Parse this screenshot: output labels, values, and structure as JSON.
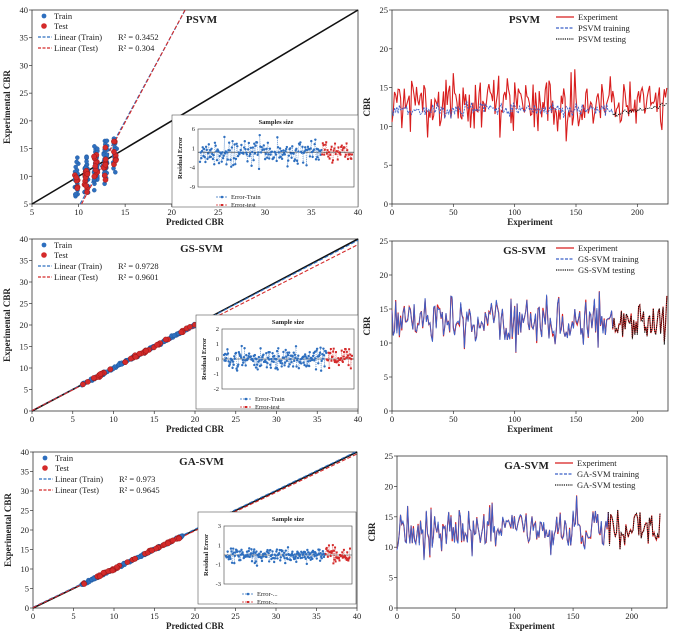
{
  "chart_data": [
    {
      "type": "scatter",
      "panel": "scatter",
      "title": "PSVM",
      "xlabel": "Predicted CBR",
      "ylabel": "Experimental CBR",
      "xlim": [
        5,
        40
      ],
      "ylim": [
        5,
        40
      ],
      "xticks": [
        "5",
        "10",
        "15",
        "20",
        "25",
        "30",
        "35",
        "40"
      ],
      "yticks": [
        "5",
        "10",
        "15",
        "20",
        "25",
        "30",
        "35",
        "40"
      ],
      "legend": {
        "train": "Train",
        "test": "Test",
        "fit_train": "Linear (Train)",
        "fit_test": "Linear (Test)"
      },
      "r2_train": "R² = 0.3452",
      "r2_test": "R² = 0.304",
      "fit_train_line": {
        "slope": 3.1,
        "intercept": -26.5
      },
      "fit_test_line": {
        "slope": 3.15,
        "intercept": -27.5
      },
      "pred_range": [
        9.8,
        13.9
      ],
      "spread": 6.5,
      "inset": {
        "title": "Samples size",
        "ylabel": "Residual Error",
        "ylim": [
          -9,
          6
        ],
        "yticks": [
          "6",
          "1",
          "-4",
          "-9"
        ],
        "legend_train": "Error-Train",
        "legend_test": "Error-test",
        "amp": 4.5
      }
    },
    {
      "type": "line",
      "panel": "series",
      "title": "PSVM",
      "xlabel": "Experiment",
      "ylabel": "CBR",
      "xlim": [
        0,
        225
      ],
      "ylim": [
        0,
        25
      ],
      "xticks": [
        "0",
        "50",
        "100",
        "150",
        "200"
      ],
      "yticks": [
        "0",
        "5",
        "10",
        "15",
        "20",
        "25"
      ],
      "legend": [
        "Experiment",
        "PSVM training",
        "PSVM testing"
      ],
      "mode": "weak",
      "train_end": 180
    },
    {
      "type": "scatter",
      "panel": "scatter",
      "title": "GS-SVM",
      "xlabel": "Predicted CBR",
      "ylabel": "Experimental CBR",
      "xlim": [
        0,
        40
      ],
      "ylim": [
        0,
        40
      ],
      "xticks": [
        "0",
        "5",
        "10",
        "15",
        "20",
        "25",
        "30",
        "35",
        "40"
      ],
      "yticks": [
        "0",
        "5",
        "10",
        "15",
        "20",
        "25",
        "30",
        "35",
        "40"
      ],
      "legend": {
        "train": "Train",
        "test": "Test",
        "fit_train": "Linear (Train)",
        "fit_test": "Linear (Test)"
      },
      "r2_train": "R² = 0.9728",
      "r2_test": "R² = 0.9601",
      "fit_train_line": {
        "slope": 0.99,
        "intercept": 0.1
      },
      "fit_test_line": {
        "slope": 0.965,
        "intercept": 0.1
      },
      "pred_range": [
        6,
        20
      ],
      "spread": 0.6,
      "inset": {
        "title": "Sample size",
        "ylabel": "Residual Error",
        "ylim": [
          -2,
          2
        ],
        "yticks": [
          "2",
          "1",
          "0",
          "-1",
          "-2"
        ],
        "legend_train": "Error-Train",
        "legend_test": "Error-test",
        "amp": 1.0
      }
    },
    {
      "type": "line",
      "panel": "series",
      "title": "GS-SVM",
      "xlabel": "Experiment",
      "ylabel": "CBR",
      "xlim": [
        0,
        225
      ],
      "ylim": [
        0,
        25
      ],
      "xticks": [
        "0",
        "50",
        "100",
        "150",
        "200"
      ],
      "yticks": [
        "0",
        "5",
        "10",
        "15",
        "20",
        "25"
      ],
      "legend": [
        "Experiment",
        "GS-SVM training",
        "GS-SVM testing"
      ],
      "mode": "good",
      "train_end": 180
    },
    {
      "type": "scatter",
      "panel": "scatter",
      "title": "GA-SVM",
      "xlabel": "Predicted CBR",
      "ylabel": "Experimental CBR",
      "xlim": [
        0,
        40
      ],
      "ylim": [
        0,
        40
      ],
      "xticks": [
        "0",
        "5",
        "10",
        "15",
        "20",
        "25",
        "30",
        "35",
        "40"
      ],
      "yticks": [
        "0",
        "5",
        "10",
        "15",
        "20",
        "25",
        "30",
        "35",
        "40"
      ],
      "legend": {
        "train": "Train",
        "test": "Test",
        "fit_train": "Linear (Train)",
        "fit_test": "Linear (Test)"
      },
      "r2_train": "R² = 0.973",
      "r2_test": "R² = 0.9645",
      "fit_train_line": {
        "slope": 1.0,
        "intercept": 0.2
      },
      "fit_test_line": {
        "slope": 0.985,
        "intercept": 0.1
      },
      "pred_range": [
        6,
        18.5
      ],
      "spread": 0.6,
      "inset": {
        "title": "Sample size",
        "ylabel": "Residual Error",
        "ylim": [
          -3,
          3
        ],
        "yticks": [
          "3",
          "1",
          "-1",
          "-3"
        ],
        "legend_train": "Error-...",
        "legend_test": "Error-...",
        "amp": 1.2
      }
    },
    {
      "type": "line",
      "panel": "series",
      "title": "GA-SVM",
      "xlabel": "Experiment",
      "ylabel": "CBR",
      "xlim": [
        0,
        230
      ],
      "ylim": [
        0,
        25
      ],
      "xticks": [
        "0",
        "50",
        "100",
        "150",
        "200"
      ],
      "yticks": [
        "0",
        "5",
        "10",
        "15",
        "20",
        "25"
      ],
      "legend": [
        "Experiment",
        "GA-SVM training",
        "GA-SVM testing"
      ],
      "mode": "good",
      "train_end": 180
    }
  ],
  "colors": {
    "train": "#2e6fbf",
    "test": "#d42a2a",
    "identity": "#111111",
    "experiment": "#d81e1e",
    "training": "#3a5fc8",
    "testing": "#111111"
  }
}
